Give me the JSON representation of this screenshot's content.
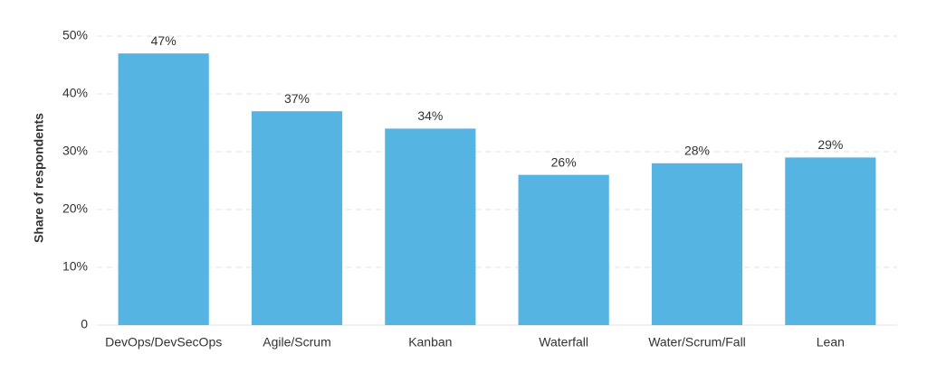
{
  "chart_data": {
    "type": "bar",
    "y_label": "Share of respondents",
    "categories": [
      "DevOps/DevSecOps",
      "Agile/Scrum",
      "Kanban",
      "Waterfall",
      "Water/Scrum/Fall",
      "Lean"
    ],
    "values": [
      47,
      37,
      34,
      26,
      28,
      29
    ],
    "value_labels": [
      "47%",
      "37%",
      "34%",
      "26%",
      "28%",
      "29%"
    ],
    "color": "#56b4e3",
    "ylim": [
      0,
      50
    ],
    "yticks": [
      0,
      {
        "value": 10,
        "label": "10%"
      },
      {
        "value": 20,
        "label": "20%"
      },
      {
        "value": 30,
        "label": "30%"
      },
      {
        "value": 40,
        "label": "40%"
      },
      {
        "value": 50,
        "label": "50%"
      }
    ],
    "grid": true
  }
}
